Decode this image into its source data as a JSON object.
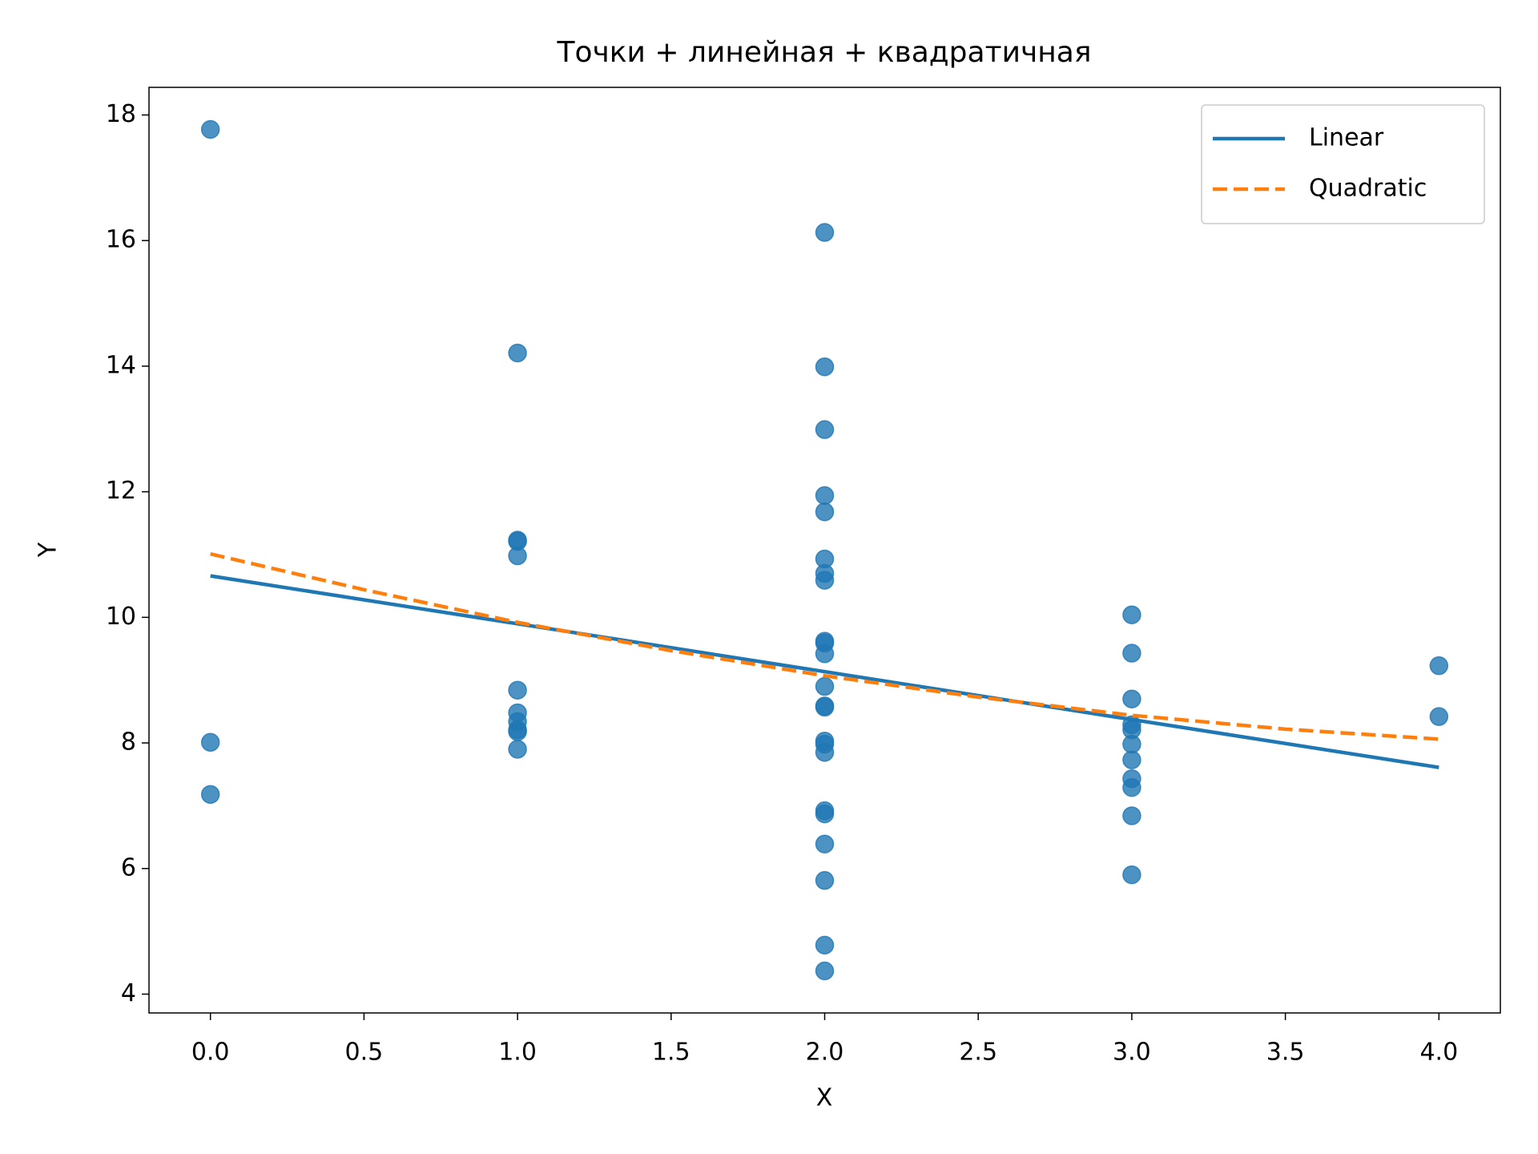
{
  "chart_data": {
    "type": "scatter",
    "title": "Точки + линейная + квадратичная",
    "xlabel": "X",
    "ylabel": "Y",
    "xlim": [
      -0.2,
      4.2
    ],
    "xticks": [
      {
        "value": 0,
        "label": "0.0"
      },
      0.5,
      {
        "value": 1,
        "label": "1.0"
      },
      1.5,
      {
        "value": 2,
        "label": "2.0"
      },
      2.5,
      {
        "value": 3,
        "label": "3.0"
      },
      3.5,
      {
        "value": 4,
        "label": "4.0"
      }
    ],
    "ylim": [
      3.7,
      18.44
    ],
    "yticks": [
      4,
      6,
      8,
      10,
      12,
      14,
      16,
      18
    ],
    "grid": false,
    "legend": "upper right",
    "series": [
      {
        "type": "scatter",
        "color": "#1f77b4",
        "x": [
          0,
          0,
          0,
          1,
          1,
          1,
          1,
          1,
          1,
          1,
          1,
          1,
          1,
          2,
          2,
          2,
          2,
          2,
          2,
          2,
          2,
          2,
          2,
          2,
          2,
          2,
          2,
          2,
          2,
          2,
          2,
          2,
          2,
          2,
          2,
          2,
          3,
          3,
          3,
          3,
          3,
          3,
          3,
          3,
          3,
          3,
          3,
          4,
          4
        ],
        "values": [
          17.77,
          8.01,
          7.18,
          14.21,
          11.23,
          11.21,
          10.98,
          8.84,
          8.48,
          8.34,
          8.21,
          8.18,
          7.9,
          16.13,
          13.99,
          12.99,
          11.94,
          11.68,
          10.93,
          10.7,
          10.59,
          9.62,
          9.59,
          9.42,
          8.9,
          8.59,
          8.57,
          8.03,
          7.98,
          7.85,
          6.92,
          6.87,
          6.39,
          5.81,
          4.78,
          4.37,
          10.04,
          9.43,
          8.7,
          8.29,
          8.21,
          7.98,
          7.73,
          7.43,
          7.29,
          6.84,
          5.9,
          9.23,
          8.42
        ]
      },
      {
        "type": "line",
        "name": "Linear",
        "color": "#1f77b4",
        "style": "solid",
        "x": [
          0,
          4
        ],
        "values": [
          10.66,
          7.61
        ]
      },
      {
        "type": "line",
        "name": "Quadratic",
        "color": "#ff7f0e",
        "style": "dashed",
        "x": [
          0,
          0.5,
          1,
          1.5,
          2,
          2.5,
          3,
          3.5,
          4
        ],
        "values": [
          11.01,
          10.44,
          9.92,
          9.47,
          9.07,
          8.73,
          8.44,
          8.22,
          8.06
        ]
      }
    ]
  }
}
